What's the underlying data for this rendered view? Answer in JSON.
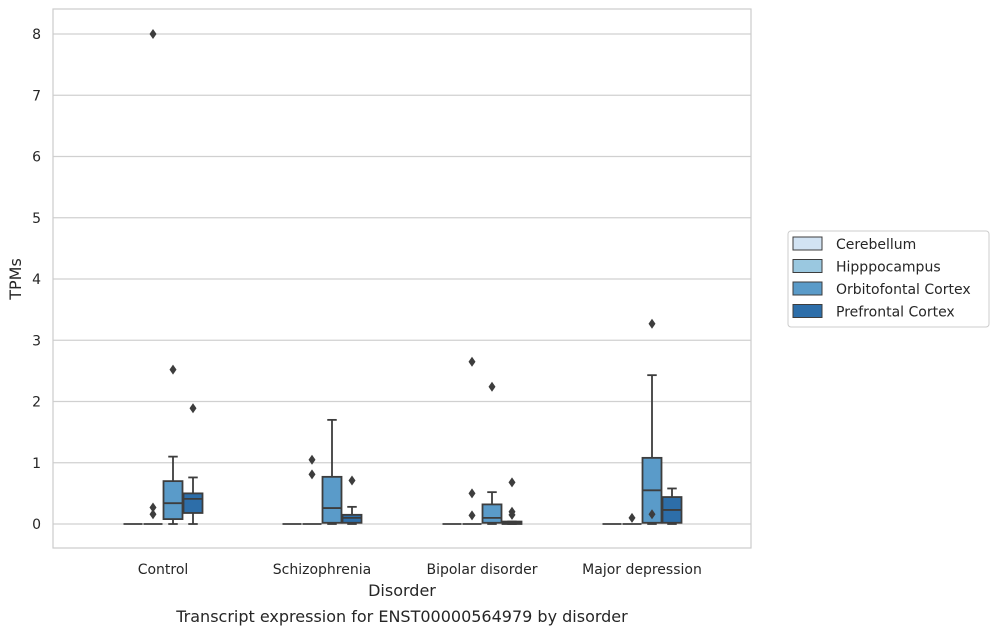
{
  "chart_data": {
    "type": "box",
    "title": "",
    "caption": "Transcript expression for ENST00000564979 by disorder",
    "xlabel": "Disorder",
    "ylabel": "TPMs",
    "ylim": [
      -0.4,
      8.4
    ],
    "yticks": [
      0,
      1,
      2,
      3,
      4,
      5,
      6,
      7,
      8
    ],
    "grid": "horizontal",
    "legend_position": "right",
    "categories": [
      "Control",
      "Schizophrenia",
      "Bipolar disorder",
      "Major depression"
    ],
    "series": [
      {
        "name": "Cerebellum",
        "color": "#d2e3f3",
        "boxes": [
          {
            "q1": 0,
            "median": 0,
            "q3": 0,
            "whisker_low": 0,
            "whisker_high": 0,
            "outliers": []
          },
          {
            "q1": 0,
            "median": 0,
            "q3": 0,
            "whisker_low": 0,
            "whisker_high": 0,
            "outliers": []
          },
          {
            "q1": 0,
            "median": 0,
            "q3": 0,
            "whisker_low": 0,
            "whisker_high": 0,
            "outliers": []
          },
          {
            "q1": 0,
            "median": 0,
            "q3": 0,
            "whisker_low": 0,
            "whisker_high": 0,
            "outliers": []
          }
        ]
      },
      {
        "name": "Hipppocampus",
        "color": "#9ac8e0",
        "boxes": [
          {
            "q1": 0,
            "median": 0,
            "q3": 0,
            "whisker_low": 0,
            "whisker_high": 0,
            "outliers": [
              8.0,
              0.27,
              0.16
            ]
          },
          {
            "q1": 0,
            "median": 0,
            "q3": 0,
            "whisker_low": 0,
            "whisker_high": 0,
            "outliers": [
              1.05,
              0.81
            ]
          },
          {
            "q1": 0,
            "median": 0,
            "q3": 0,
            "whisker_low": 0,
            "whisker_high": 0,
            "outliers": [
              2.65,
              0.5,
              0.14
            ]
          },
          {
            "q1": 0,
            "median": 0,
            "q3": 0,
            "whisker_low": 0,
            "whisker_high": 0,
            "outliers": [
              0.1
            ]
          }
        ]
      },
      {
        "name": "Orbitofontal Cortex",
        "color": "#5a9bc9",
        "boxes": [
          {
            "q1": 0.08,
            "median": 0.34,
            "q3": 0.7,
            "whisker_low": 0,
            "whisker_high": 1.1,
            "outliers": [
              2.52
            ]
          },
          {
            "q1": 0.02,
            "median": 0.26,
            "q3": 0.77,
            "whisker_low": 0,
            "whisker_high": 1.7,
            "outliers": []
          },
          {
            "q1": 0.02,
            "median": 0.1,
            "q3": 0.32,
            "whisker_low": 0,
            "whisker_high": 0.52,
            "outliers": [
              2.24
            ]
          },
          {
            "q1": 0.02,
            "median": 0.55,
            "q3": 1.08,
            "whisker_low": 0,
            "whisker_high": 2.43,
            "outliers": [
              0.16,
              3.27
            ]
          }
        ]
      },
      {
        "name": "Prefrontal Cortex",
        "color": "#2d6ea9",
        "boxes": [
          {
            "q1": 0.18,
            "median": 0.41,
            "q3": 0.5,
            "whisker_low": 0,
            "whisker_high": 0.76,
            "outliers": [
              1.89
            ]
          },
          {
            "q1": 0.02,
            "median": 0.1,
            "q3": 0.15,
            "whisker_low": 0,
            "whisker_high": 0.28,
            "outliers": [
              0.71
            ]
          },
          {
            "q1": 0,
            "median": 0.02,
            "q3": 0.04,
            "whisker_low": 0,
            "whisker_high": 0.04,
            "outliers": [
              0.68,
              0.2,
              0.15
            ]
          },
          {
            "q1": 0.02,
            "median": 0.23,
            "q3": 0.44,
            "whisker_low": 0,
            "whisker_high": 0.58,
            "outliers": []
          }
        ]
      }
    ]
  }
}
